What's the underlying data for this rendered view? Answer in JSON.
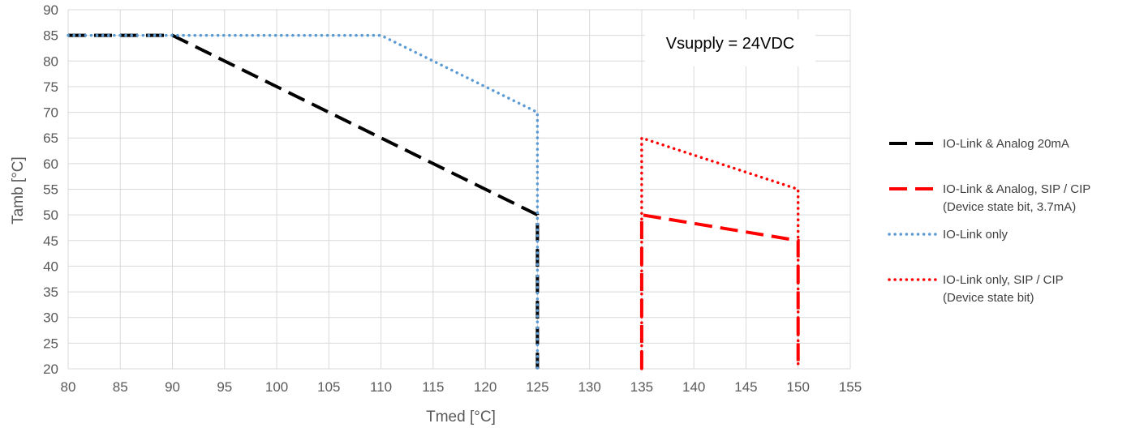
{
  "chart_data": {
    "type": "line",
    "title": "",
    "xlabel": "Tmed [°C]",
    "ylabel": "Tamb [°C]",
    "xlim": [
      80,
      155
    ],
    "ylim": [
      20,
      90
    ],
    "x_ticks": [
      "80",
      "85",
      "90",
      "95",
      "100",
      "105",
      "110",
      "115",
      "120",
      "125",
      "130",
      "135",
      "140",
      "145",
      "150",
      "155"
    ],
    "y_ticks": [
      "20",
      "25",
      "30",
      "35",
      "40",
      "45",
      "50",
      "55",
      "60",
      "65",
      "70",
      "75",
      "80",
      "85",
      "90"
    ],
    "grid": true,
    "legend_position": "right",
    "annotation": "Vsupply = 24VDC",
    "series": [
      {
        "name": "IO-Link & Analog 20mA",
        "style": "dashed",
        "color": "#000000",
        "points": [
          [
            80,
            85
          ],
          [
            90,
            85
          ],
          [
            125,
            50
          ],
          [
            125,
            20
          ]
        ]
      },
      {
        "name": "IO-Link & Analog,  SIP / CIP",
        "name_line2": "(Device state bit, 3.7mA)",
        "style": "dashed",
        "color": "#ff0000",
        "points": [
          [
            135,
            20
          ],
          [
            135,
            50
          ],
          [
            150,
            45
          ],
          [
            150,
            20
          ]
        ]
      },
      {
        "name": "IO-Link only",
        "style": "dotted",
        "color": "#5b9bd5",
        "points": [
          [
            80,
            85
          ],
          [
            110,
            85
          ],
          [
            125,
            70
          ],
          [
            125,
            20
          ]
        ]
      },
      {
        "name": "IO-Link only, SIP / CIP",
        "name_line2": "(Device state bit)",
        "style": "dotted",
        "color": "#ff0000",
        "points": [
          [
            135,
            20
          ],
          [
            135,
            65
          ],
          [
            150,
            55
          ],
          [
            150,
            20
          ]
        ]
      }
    ]
  }
}
